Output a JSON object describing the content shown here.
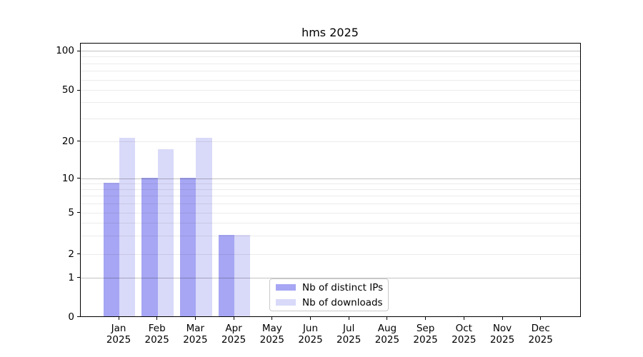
{
  "chart_data": {
    "type": "bar",
    "title": "hms 2025",
    "categories": [
      "Jan",
      "Feb",
      "Mar",
      "Apr",
      "May",
      "Jun",
      "Jul",
      "Aug",
      "Sep",
      "Oct",
      "Nov",
      "Dec"
    ],
    "x_year_label": "2025",
    "series": [
      {
        "name": "Nb of distinct IPs",
        "color": "#a6a6f4",
        "values": [
          9,
          10,
          10,
          3,
          0,
          0,
          0,
          0,
          0,
          0,
          0,
          0
        ]
      },
      {
        "name": "Nb of downloads",
        "color": "#d9d9f9",
        "values": [
          21,
          17,
          21,
          3,
          0,
          0,
          0,
          0,
          0,
          0,
          0,
          0
        ]
      }
    ],
    "y_axis": {
      "scale": "symlog-like",
      "major_ticks": [
        0,
        1,
        2,
        5,
        10,
        20,
        50,
        100
      ],
      "minor_gridlines": [
        3,
        4,
        6,
        7,
        8,
        9,
        30,
        40,
        60,
        70,
        80,
        90
      ],
      "decade_lines": [
        1,
        10,
        100
      ],
      "ylim": [
        0,
        114
      ]
    },
    "grid": "on",
    "legend": {
      "position": "lower-center",
      "entries": [
        "Nb of distinct IPs",
        "Nb of downloads"
      ]
    }
  }
}
